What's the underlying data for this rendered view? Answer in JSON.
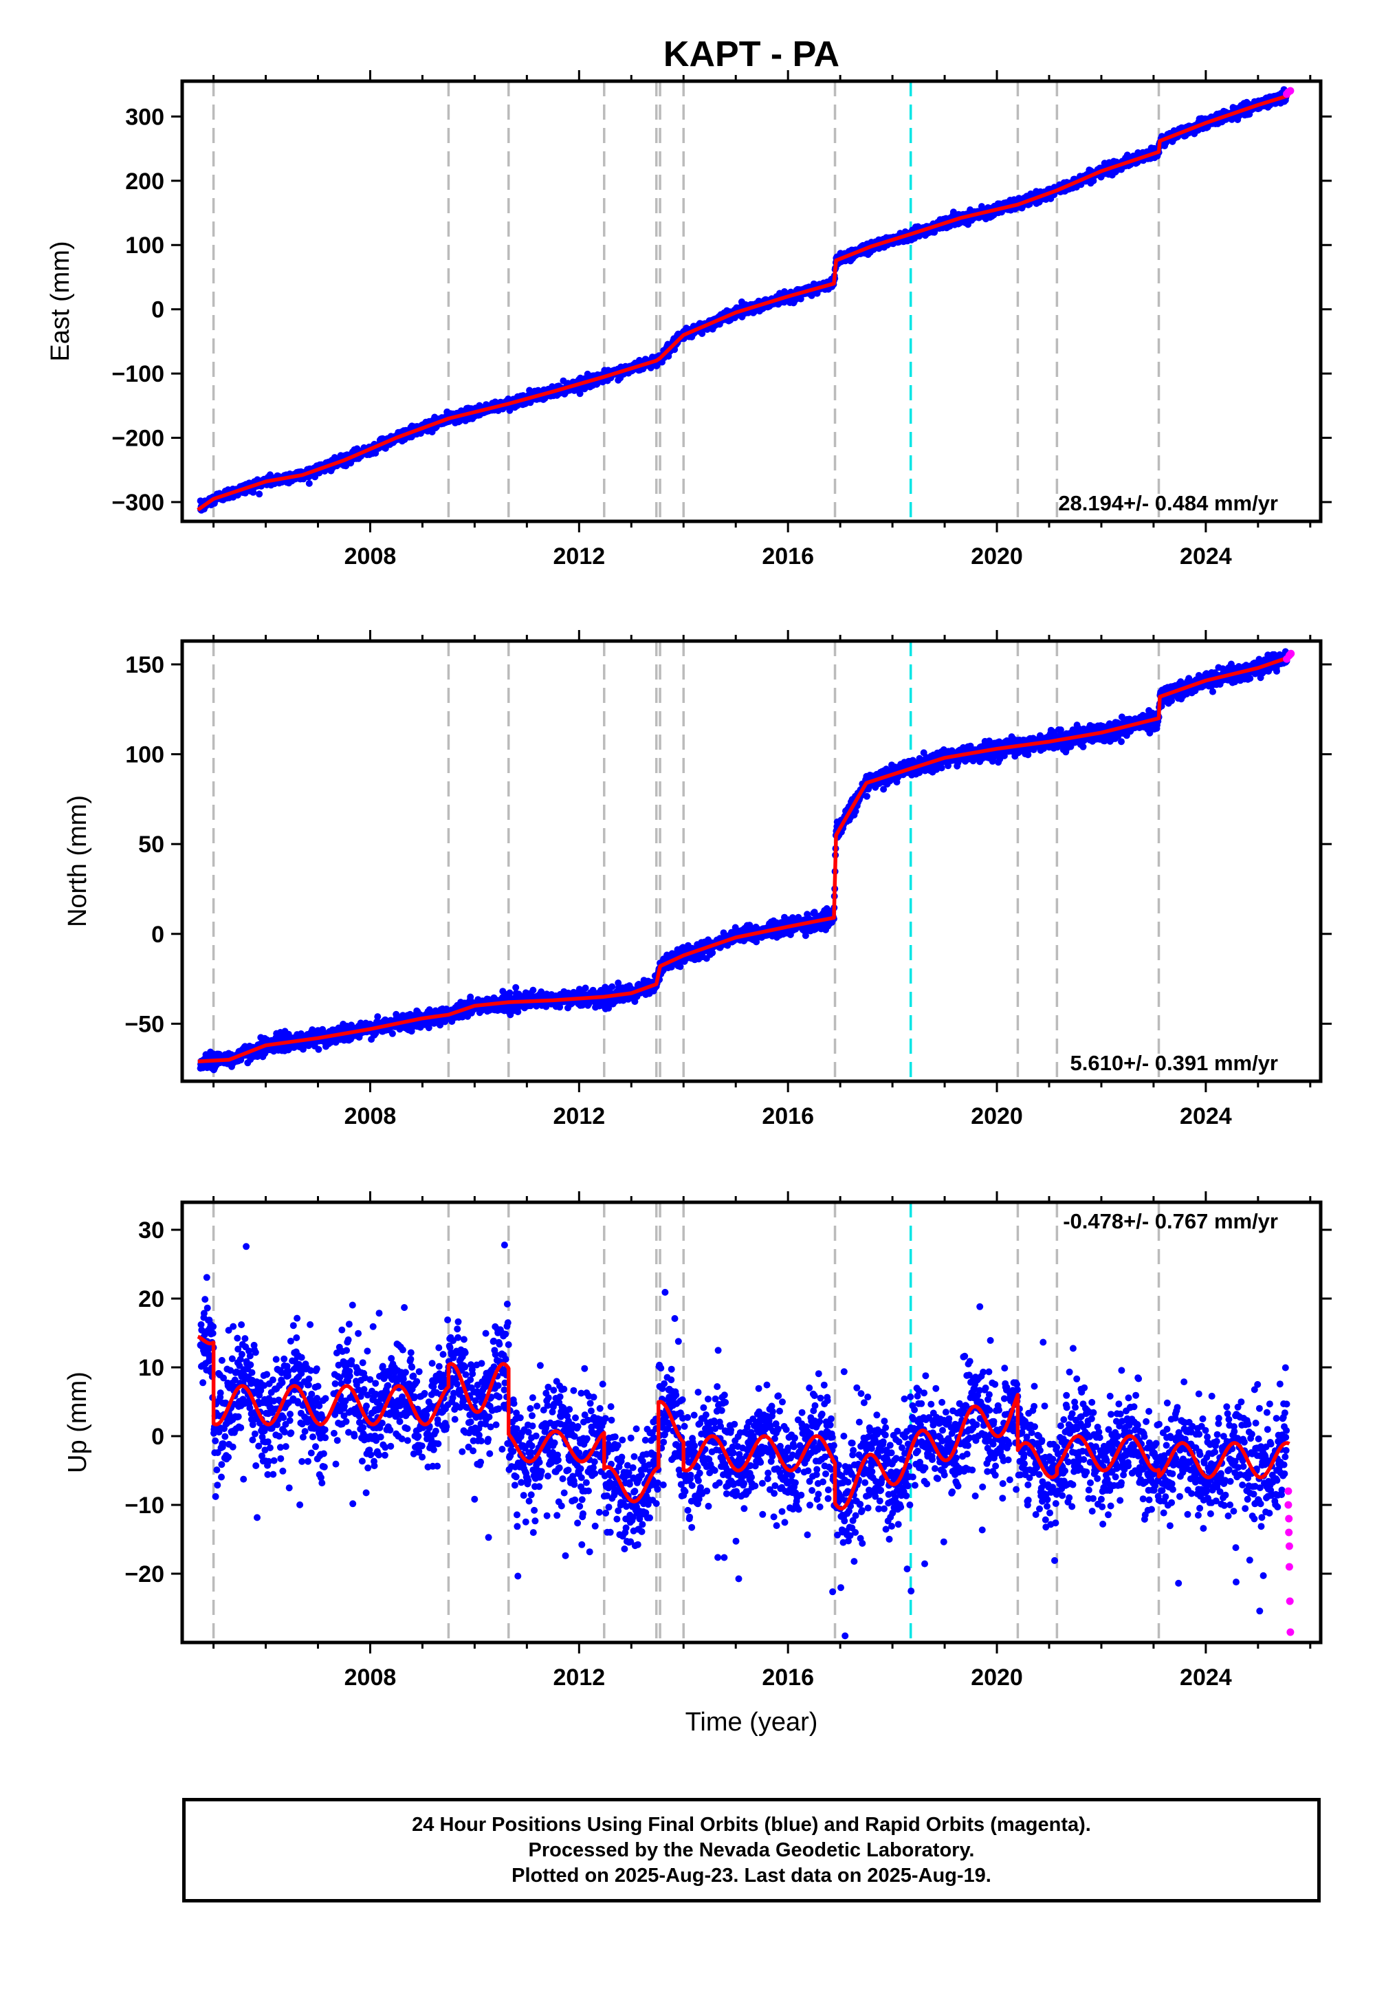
{
  "title": "KAPT - PA",
  "xlabel": "Time (year)",
  "x_tick_labels": [
    "2008",
    "2012",
    "2016",
    "2020",
    "2024"
  ],
  "caption": {
    "line1": "24 Hour Positions Using Final Orbits (blue) and Rapid Orbits (magenta).",
    "line2": "Processed by the Nevada Geodetic Laboratory.",
    "line3": "Plotted on 2025-Aug-23. Last data on 2025-Aug-19."
  },
  "colors": {
    "final_orbits": "#0000ff",
    "rapid_orbits": "#ff00ff",
    "model": "#ff0000",
    "event_lines": "#bbbbbb",
    "antenna_change_line": "#00e5e5"
  },
  "chart_data": [
    {
      "type": "scatter",
      "panel": "East",
      "ylabel": "East (mm)",
      "rate_label": "28.194+/- 0.484 mm/yr",
      "rate_position": "bottom-right",
      "xlim": [
        2004.4,
        2026.2
      ],
      "ylim": [
        -330,
        355
      ],
      "yticks": [
        -300,
        -200,
        -100,
        0,
        100,
        200,
        300
      ],
      "y_tick_labels": [
        "−300",
        "−200",
        "−100",
        "0",
        "100",
        "200",
        "300"
      ],
      "event_lines": [
        2005.0,
        2009.5,
        2010.65,
        2012.48,
        2013.48,
        2013.55,
        2014.0,
        2016.9,
        2020.4,
        2021.15,
        2023.1
      ],
      "antenna_line": 2018.35,
      "model_knots": [
        [
          2004.7,
          -312
        ],
        [
          2005.0,
          -295
        ],
        [
          2006.0,
          -268
        ],
        [
          2006.7,
          -258
        ],
        [
          2007.5,
          -235
        ],
        [
          2008.5,
          -200
        ],
        [
          2009.5,
          -170
        ],
        [
          2010.65,
          -147
        ],
        [
          2011.5,
          -128
        ],
        [
          2012.48,
          -105
        ],
        [
          2013.48,
          -80
        ],
        [
          2013.55,
          -76
        ],
        [
          2014.0,
          -40
        ],
        [
          2015.0,
          -5
        ],
        [
          2016.0,
          20
        ],
        [
          2016.88,
          40
        ],
        [
          2016.92,
          76
        ],
        [
          2017.6,
          98
        ],
        [
          2018.35,
          117
        ],
        [
          2019.3,
          142
        ],
        [
          2020.4,
          163
        ],
        [
          2021.15,
          185
        ],
        [
          2022.0,
          215
        ],
        [
          2023.1,
          245
        ],
        [
          2023.12,
          262
        ],
        [
          2024.0,
          290
        ],
        [
          2025.0,
          318
        ],
        [
          2025.6,
          333
        ]
      ],
      "noise": 4,
      "segment_noise": [],
      "rapid_points": [
        [
          2025.55,
          335
        ],
        [
          2025.58,
          338
        ],
        [
          2025.62,
          340
        ]
      ]
    },
    {
      "type": "scatter",
      "panel": "North",
      "ylabel": "North (mm)",
      "rate_label": "5.610+/- 0.391 mm/yr",
      "rate_position": "bottom-right",
      "xlim": [
        2004.4,
        2026.2
      ],
      "ylim": [
        -82,
        163
      ],
      "yticks": [
        -50,
        0,
        50,
        100,
        150
      ],
      "y_tick_labels": [
        "−50",
        "0",
        "50",
        "100",
        "150"
      ],
      "event_lines": [
        2005.0,
        2009.5,
        2010.65,
        2012.48,
        2013.48,
        2013.55,
        2014.0,
        2016.9,
        2020.4,
        2021.15,
        2023.1
      ],
      "antenna_line": 2018.35,
      "model_knots": [
        [
          2004.7,
          -71
        ],
        [
          2005.3,
          -70
        ],
        [
          2006.0,
          -62
        ],
        [
          2007.0,
          -58
        ],
        [
          2008.0,
          -53
        ],
        [
          2009.0,
          -47
        ],
        [
          2009.5,
          -45
        ],
        [
          2010.0,
          -40
        ],
        [
          2010.65,
          -38
        ],
        [
          2011.5,
          -37
        ],
        [
          2012.48,
          -35
        ],
        [
          2013.0,
          -33
        ],
        [
          2013.48,
          -28
        ],
        [
          2013.55,
          -18
        ],
        [
          2014.0,
          -12
        ],
        [
          2015.0,
          -2
        ],
        [
          2016.0,
          4
        ],
        [
          2016.88,
          9
        ],
        [
          2016.92,
          55
        ],
        [
          2017.5,
          84
        ],
        [
          2018.35,
          92
        ],
        [
          2019.0,
          98
        ],
        [
          2020.0,
          103
        ],
        [
          2021.0,
          107
        ],
        [
          2022.0,
          112
        ],
        [
          2023.1,
          120
        ],
        [
          2023.12,
          132
        ],
        [
          2024.0,
          141
        ],
        [
          2025.0,
          148
        ],
        [
          2025.6,
          154
        ]
      ],
      "noise": 2.2,
      "segment_noise": [],
      "rapid_points": [
        [
          2025.55,
          153
        ],
        [
          2025.6,
          155
        ],
        [
          2025.63,
          156
        ]
      ]
    },
    {
      "type": "scatter",
      "panel": "Up",
      "ylabel": "Up (mm)",
      "rate_label": "-0.478+/- 0.767 mm/yr",
      "rate_position": "top-right",
      "xlim": [
        2004.4,
        2026.2
      ],
      "ylim": [
        -30,
        34
      ],
      "yticks": [
        -20,
        -10,
        0,
        10,
        20,
        30
      ],
      "y_tick_labels": [
        "−20",
        "−10",
        "0",
        "10",
        "20",
        "30"
      ],
      "event_lines": [
        2005.0,
        2009.5,
        2010.65,
        2012.48,
        2013.48,
        2013.55,
        2014.0,
        2016.9,
        2020.4,
        2021.15,
        2023.1
      ],
      "antenna_line": 2018.35,
      "model_segments": [
        {
          "x0": 2004.7,
          "x1": 2005.0,
          "base": 13,
          "slope": 10,
          "amp": 2.5
        },
        {
          "x0": 2005.0,
          "x1": 2009.5,
          "base": 4.5,
          "slope": 0,
          "amp": 2.8
        },
        {
          "x0": 2009.5,
          "x1": 2010.65,
          "base": 7,
          "slope": 0,
          "amp": 3.5
        },
        {
          "x0": 2010.65,
          "x1": 2012.48,
          "base": -1.5,
          "slope": 0,
          "amp": 2.2
        },
        {
          "x0": 2012.48,
          "x1": 2013.52,
          "base": -7,
          "slope": 0,
          "amp": 2.5
        },
        {
          "x0": 2013.52,
          "x1": 2014.0,
          "base": 2,
          "slope": 0,
          "amp": 3
        },
        {
          "x0": 2014.0,
          "x1": 2016.9,
          "base": -2.5,
          "slope": 0,
          "amp": 2.5
        },
        {
          "x0": 2016.9,
          "x1": 2020.4,
          "base": -8,
          "slope": 3.5,
          "amp": 3
        },
        {
          "x0": 2020.4,
          "x1": 2021.15,
          "base": -3.5,
          "slope": 0,
          "amp": 2.5
        },
        {
          "x0": 2021.15,
          "x1": 2023.1,
          "base": -2.5,
          "slope": 0,
          "amp": 2.5
        },
        {
          "x0": 2023.1,
          "x1": 2025.6,
          "base": -3.5,
          "slope": 0,
          "amp": 2.5
        }
      ],
      "noise": 3.8,
      "rapid_points": [
        [
          2025.58,
          -8
        ],
        [
          2025.58,
          -10
        ],
        [
          2025.59,
          -12
        ],
        [
          2025.59,
          -14
        ],
        [
          2025.6,
          -16
        ],
        [
          2025.6,
          -19
        ],
        [
          2025.61,
          -24
        ],
        [
          2025.62,
          -28.5
        ]
      ]
    }
  ]
}
